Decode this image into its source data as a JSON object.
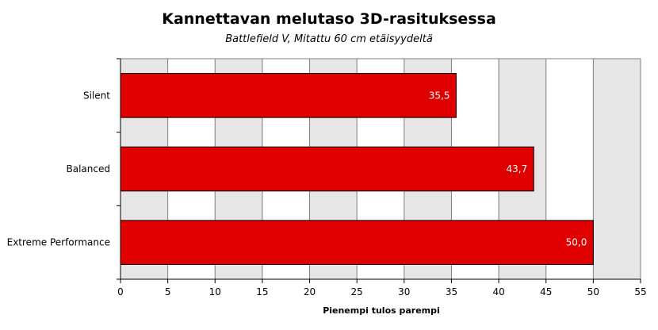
{
  "chart_data": {
    "type": "bar",
    "orientation": "horizontal",
    "title": "Kannettavan melutaso 3D-rasituksessa",
    "subtitle": "Battlefield V, Mitattu 60 cm etäisyydeltä",
    "xlabel": "Pienempi tulos parempi",
    "ylabel": "",
    "categories": [
      "Silent",
      "Balanced",
      "Extreme Performance"
    ],
    "values": [
      35.5,
      43.7,
      50.0
    ],
    "data_labels": [
      "35,5",
      "43,7",
      "50,0"
    ],
    "xlim": [
      0,
      55
    ],
    "x_ticks": [
      0,
      5,
      10,
      15,
      20,
      25,
      30,
      35,
      40,
      45,
      50,
      55
    ],
    "grid": true,
    "legend": "none",
    "colors": {
      "bar": "#e00000",
      "bar_stroke": "#000000",
      "band_light": "#e6e6e6",
      "band_white": "#ffffff",
      "grid": "#7f7f7f"
    }
  }
}
